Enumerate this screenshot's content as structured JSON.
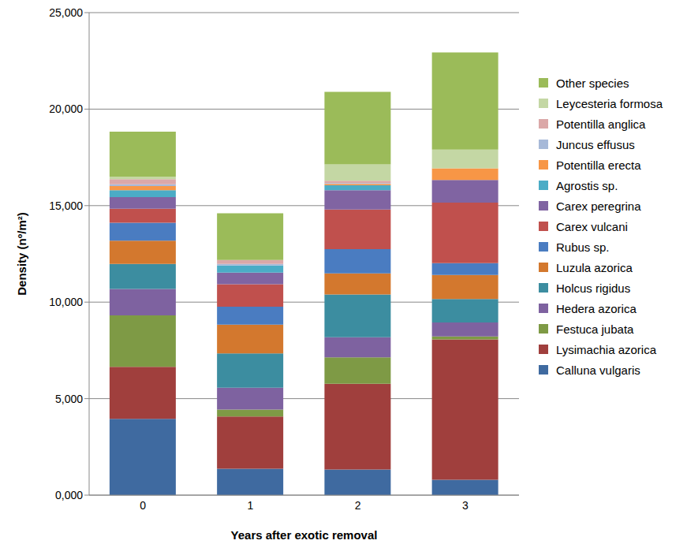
{
  "chart_data": {
    "type": "bar",
    "stacked": true,
    "grid": true,
    "legend": "right",
    "x_label": "Years after exotic removal",
    "y_label": "Density (nº/m²)",
    "categories": [
      "0",
      "1",
      "2",
      "3"
    ],
    "ylim": [
      0,
      25000
    ],
    "yticks": [
      {
        "value": 0,
        "label": "0,000"
      },
      {
        "value": 5000,
        "label": "5,000"
      },
      {
        "value": 10000,
        "label": "10,000"
      },
      {
        "value": 15000,
        "label": "15,000"
      },
      {
        "value": 20000,
        "label": "20,000"
      },
      {
        "value": 25000,
        "label": "25,000"
      }
    ],
    "series": [
      {
        "name": "Calluna vulgaris",
        "color": "#3F6AA0",
        "values": [
          3950,
          1370,
          1330,
          800
        ]
      },
      {
        "name": "Lysimachia azorica",
        "color": "#A03F3D",
        "values": [
          2700,
          2700,
          4440,
          7265
        ]
      },
      {
        "name": "Festuca jubata",
        "color": "#7E9A45",
        "values": [
          2665,
          365,
          1370,
          160
        ]
      },
      {
        "name": "Hedera azorica",
        "color": "#7E62A0",
        "values": [
          1370,
          1130,
          1045,
          725
        ]
      },
      {
        "name": "Holcus rigidus",
        "color": "#3C8DA0",
        "values": [
          1290,
          1775,
          2215,
          1210
        ]
      },
      {
        "name": "Luzula azorica",
        "color": "#D3782E",
        "values": [
          1210,
          1490,
          1090,
          1250
        ]
      },
      {
        "name": "Rubus sp.",
        "color": "#4A7CC1",
        "values": [
          925,
          930,
          1250,
          605
        ]
      },
      {
        "name": "Carex vulcani",
        "color": "#C0504D",
        "values": [
          730,
          1170,
          2060,
          3145
        ]
      },
      {
        "name": "Carex peregrina",
        "color": "#8064A2",
        "values": [
          605,
          600,
          1000,
          1170
        ]
      },
      {
        "name": "Agrostis sp.",
        "color": "#4BACC6",
        "values": [
          355,
          365,
          250,
          0
        ]
      },
      {
        "name": "Potentilla erecta",
        "color": "#F79646",
        "values": [
          210,
          0,
          80,
          605
        ]
      },
      {
        "name": "Juncus effusus",
        "color": "#A7B9D8",
        "values": [
          90,
          80,
          40,
          0
        ]
      },
      {
        "name": "Potentilla anglica",
        "color": "#DBA8A8",
        "values": [
          270,
          205,
          120,
          0
        ]
      },
      {
        "name": "Leycesteria formosa",
        "color": "#C4D7A4",
        "values": [
          120,
          0,
          850,
          965
        ]
      },
      {
        "name": "Other species",
        "color": "#9BBB59",
        "values": [
          2340,
          2420,
          3750,
          5040
        ]
      }
    ]
  }
}
